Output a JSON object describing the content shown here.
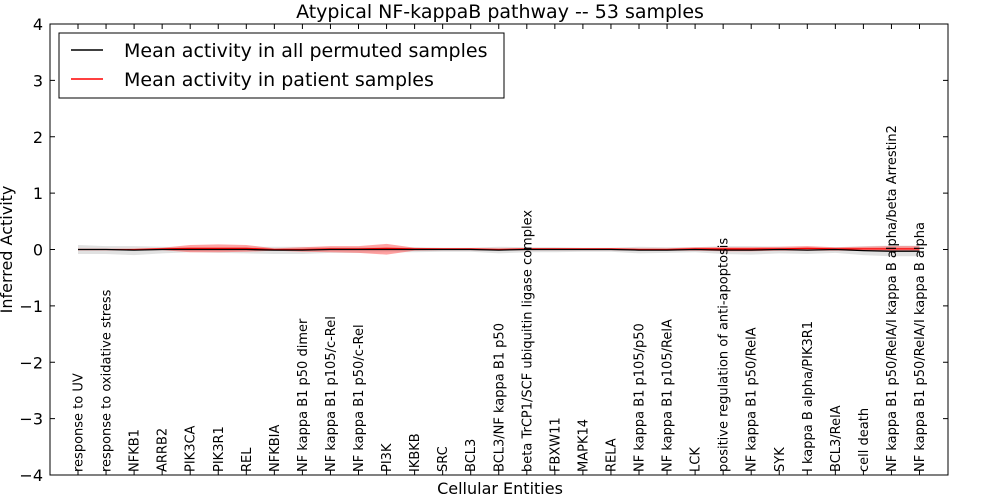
{
  "chart_data": {
    "type": "line",
    "title": "Atypical NF-kappaB pathway -- 53 samples",
    "xlabel": "Cellular Entities",
    "ylabel": "Inferred Activity",
    "ylim": [
      -4,
      4
    ],
    "yticks": [
      -4,
      -3,
      -2,
      -1,
      0,
      1,
      2,
      3,
      4
    ],
    "ytick_labels": [
      "−4",
      "−3",
      "−2",
      "−1",
      "0",
      "1",
      "2",
      "3",
      "4"
    ],
    "grid": false,
    "legend_position": "top-left",
    "categories": [
      "response to UV",
      "response to oxidative stress",
      "NFKB1",
      "ARRB2",
      "PIK3CA",
      "PIK3R1",
      "REL",
      "NFKBIA",
      "NF kappa B1 p50 dimer",
      "NF kappa B1 p105/c-Rel",
      "NF kappa B1 p50/c-Rel",
      "PI3K",
      "IKBKB",
      "SRC",
      "BCL3",
      "BCL3/NF kappa B1 p50",
      "beta TrCP1/SCF ubiquitin ligase complex",
      "FBXW11",
      "MAPK14",
      "RELA",
      "NF kappa B1 p105/p50",
      "NF kappa B1 p105/RelA",
      "LCK",
      "positive regulation of anti-apoptosis",
      "NF kappa B1 p50/RelA",
      "SYK",
      "I kappa B alpha/PIK3R1",
      "BCL3/RelA",
      "cell death",
      "NF kappa B1 p50/RelA/I kappa B alpha/beta Arrestin2",
      "NF kappa B1 p50/RelA/I kappa B alpha"
    ],
    "series": [
      {
        "name": "Mean activity in all permuted samples",
        "color": "#000000",
        "values": [
          0,
          0,
          -0.01,
          0,
          0,
          0,
          0,
          -0.01,
          -0.01,
          0,
          0,
          0,
          0,
          0,
          0,
          -0.01,
          0,
          0,
          0,
          0,
          -0.01,
          -0.01,
          0,
          -0.01,
          -0.01,
          0,
          -0.01,
          0,
          -0.02,
          -0.03,
          -0.03
        ],
        "band_upper": [
          0.08,
          0.06,
          0.06,
          0.05,
          0.04,
          0.04,
          0.05,
          0.05,
          0.05,
          0.04,
          0.04,
          0.04,
          0.04,
          0.03,
          0.03,
          0.05,
          0.04,
          0.04,
          0.03,
          0.03,
          0.05,
          0.04,
          0.04,
          0.06,
          0.06,
          0.05,
          0.05,
          0.04,
          0.06,
          0.07,
          0.07
        ],
        "band_lower": [
          -0.08,
          -0.08,
          -0.1,
          -0.07,
          -0.05,
          -0.06,
          -0.07,
          -0.08,
          -0.08,
          -0.06,
          -0.06,
          -0.05,
          -0.05,
          -0.04,
          -0.04,
          -0.07,
          -0.05,
          -0.05,
          -0.04,
          -0.04,
          -0.07,
          -0.06,
          -0.05,
          -0.08,
          -0.09,
          -0.07,
          -0.08,
          -0.06,
          -0.1,
          -0.12,
          -0.12
        ]
      },
      {
        "name": "Mean activity in patient samples",
        "color": "#ff0000",
        "values": [
          0,
          0,
          0,
          0.01,
          0.02,
          0.02,
          0.02,
          0,
          0,
          0.01,
          0.01,
          0.02,
          0.01,
          0.01,
          0.01,
          0,
          0.01,
          0.01,
          0.01,
          0.01,
          0,
          0,
          0.01,
          0.01,
          0.01,
          0.01,
          0.02,
          0.01,
          0.01,
          0.01,
          0.01
        ],
        "band_upper": [
          0,
          0,
          0.01,
          0.03,
          0.08,
          0.09,
          0.08,
          0.02,
          0.04,
          0.06,
          0.06,
          0.1,
          0.03,
          0.02,
          0.02,
          0.02,
          0.02,
          0.02,
          0.02,
          0.02,
          0.02,
          0.02,
          0.04,
          0.04,
          0.04,
          0.05,
          0.06,
          0.04,
          0.05,
          0.06,
          0.06
        ],
        "band_lower": [
          0,
          0,
          -0.01,
          -0.01,
          -0.05,
          -0.05,
          -0.04,
          -0.02,
          -0.04,
          -0.05,
          -0.06,
          -0.09,
          -0.02,
          -0.01,
          -0.01,
          -0.02,
          -0.01,
          -0.01,
          -0.01,
          -0.01,
          -0.02,
          -0.02,
          -0.02,
          -0.03,
          -0.03,
          -0.02,
          -0.02,
          -0.02,
          -0.02,
          -0.03,
          -0.03
        ]
      }
    ],
    "band_colors": {
      "permuted": "#c8c8c8",
      "patient": "#ff6666"
    }
  }
}
